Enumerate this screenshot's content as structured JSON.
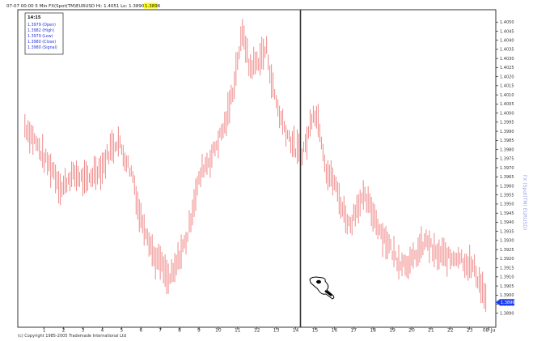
{
  "header": {
    "text": "07-07 00:00 5 Min FX(Spot(TM)EURUSD  Hi: 1.4051 Lo: 1.3890",
    "highlight": "1.3896",
    "highlight_color": "#ffff00"
  },
  "info_box": {
    "time": "14:15",
    "lines": [
      "1.3979 (Open)",
      "1.3982 (High)",
      "1.3979 (Low)",
      "1.3980 (Close)",
      "1.3980 (Signal)"
    ]
  },
  "price_marker": {
    "value": "1.3896",
    "color": "#1a3df0"
  },
  "side_label": "FX (Spot(TM) EURUSD)",
  "footer": "(c) Copyright 1985-2005 Trademade International Ltd",
  "colors": {
    "bars": "#f08a8a",
    "marker_line": "#333333",
    "axis": "#000000"
  },
  "cursor_icon": "pointing-hand-with-eye-icon",
  "chart_data": {
    "type": "bar",
    "style": "ohlc-high-low-bars",
    "ylim": [
      1.3885,
      1.4055
    ],
    "y_ticks": [
      "1.4050",
      "1.4045",
      "1.4040",
      "1.4035",
      "1.4030",
      "1.4025",
      "1.4020",
      "1.4015",
      "1.4010",
      "1.4005",
      "1.4000",
      "1.3995",
      "1.3990",
      "1.3985",
      "1.3980",
      "1.3975",
      "1.3970",
      "1.3965",
      "1.3960",
      "1.3955",
      "1.3950",
      "1.3945",
      "1.3940",
      "1.3935",
      "1.3930",
      "1.3925",
      "1.3920",
      "1.3915",
      "1.3910",
      "1.3905",
      "1.3900",
      "1.3895",
      "1.3890"
    ],
    "x_ticks": [
      "1",
      "2",
      "3",
      "4",
      "5",
      "6",
      "7",
      "8",
      "9",
      "10",
      "11",
      "12",
      "13",
      "14",
      "15",
      "16",
      "17",
      "18",
      "19",
      "20",
      "21",
      "22",
      "23",
      "08-Ju"
    ],
    "x_tick_hours": [
      1,
      2,
      3,
      4,
      5,
      6,
      7,
      8,
      9,
      10,
      11,
      12,
      13,
      14,
      15,
      16,
      17,
      18,
      19,
      20,
      21,
      22,
      23,
      24
    ],
    "x_range_hours": [
      -0.2,
      24.1
    ],
    "marker_hour": 14.25,
    "grid": false,
    "price_path": [
      [
        0.0,
        1.3993
      ],
      [
        0.5,
        1.3985
      ],
      [
        1.0,
        1.3975
      ],
      [
        1.5,
        1.3968
      ],
      [
        1.9,
        1.3958
      ],
      [
        2.3,
        1.3965
      ],
      [
        2.7,
        1.3966
      ],
      [
        3.2,
        1.3962
      ],
      [
        3.6,
        1.3968
      ],
      [
        4.0,
        1.397
      ],
      [
        4.4,
        1.398
      ],
      [
        4.8,
        1.3985
      ],
      [
        5.2,
        1.3975
      ],
      [
        5.6,
        1.3965
      ],
      [
        5.9,
        1.3945
      ],
      [
        6.3,
        1.3935
      ],
      [
        6.7,
        1.392
      ],
      [
        7.0,
        1.3918
      ],
      [
        7.4,
        1.3908
      ],
      [
        7.7,
        1.3912
      ],
      [
        8.0,
        1.3922
      ],
      [
        8.4,
        1.3932
      ],
      [
        8.8,
        1.3955
      ],
      [
        9.2,
        1.397
      ],
      [
        9.6,
        1.3975
      ],
      [
        10.0,
        1.3985
      ],
      [
        10.4,
        1.3995
      ],
      [
        10.8,
        1.4015
      ],
      [
        11.0,
        1.403
      ],
      [
        11.3,
        1.4045
      ],
      [
        11.6,
        1.4025
      ],
      [
        12.0,
        1.4028
      ],
      [
        12.5,
        1.4035
      ],
      [
        12.8,
        1.4015
      ],
      [
        13.2,
        1.3998
      ],
      [
        13.6,
        1.3988
      ],
      [
        14.0,
        1.398
      ],
      [
        14.3,
        1.3978
      ],
      [
        14.6,
        1.3985
      ],
      [
        14.9,
        1.4002
      ],
      [
        15.2,
        1.3995
      ],
      [
        15.6,
        1.3968
      ],
      [
        16.0,
        1.3962
      ],
      [
        16.4,
        1.3948
      ],
      [
        16.8,
        1.3938
      ],
      [
        17.2,
        1.395
      ],
      [
        17.6,
        1.3953
      ],
      [
        18.0,
        1.3945
      ],
      [
        18.4,
        1.3935
      ],
      [
        18.8,
        1.3928
      ],
      [
        19.2,
        1.392
      ],
      [
        19.6,
        1.3918
      ],
      [
        20.0,
        1.3918
      ],
      [
        20.4,
        1.3925
      ],
      [
        20.8,
        1.393
      ],
      [
        21.2,
        1.3922
      ],
      [
        21.6,
        1.3922
      ],
      [
        22.0,
        1.392
      ],
      [
        22.4,
        1.3922
      ],
      [
        22.8,
        1.3918
      ],
      [
        23.2,
        1.3915
      ],
      [
        23.6,
        1.3905
      ],
      [
        23.9,
        1.3896
      ]
    ]
  }
}
